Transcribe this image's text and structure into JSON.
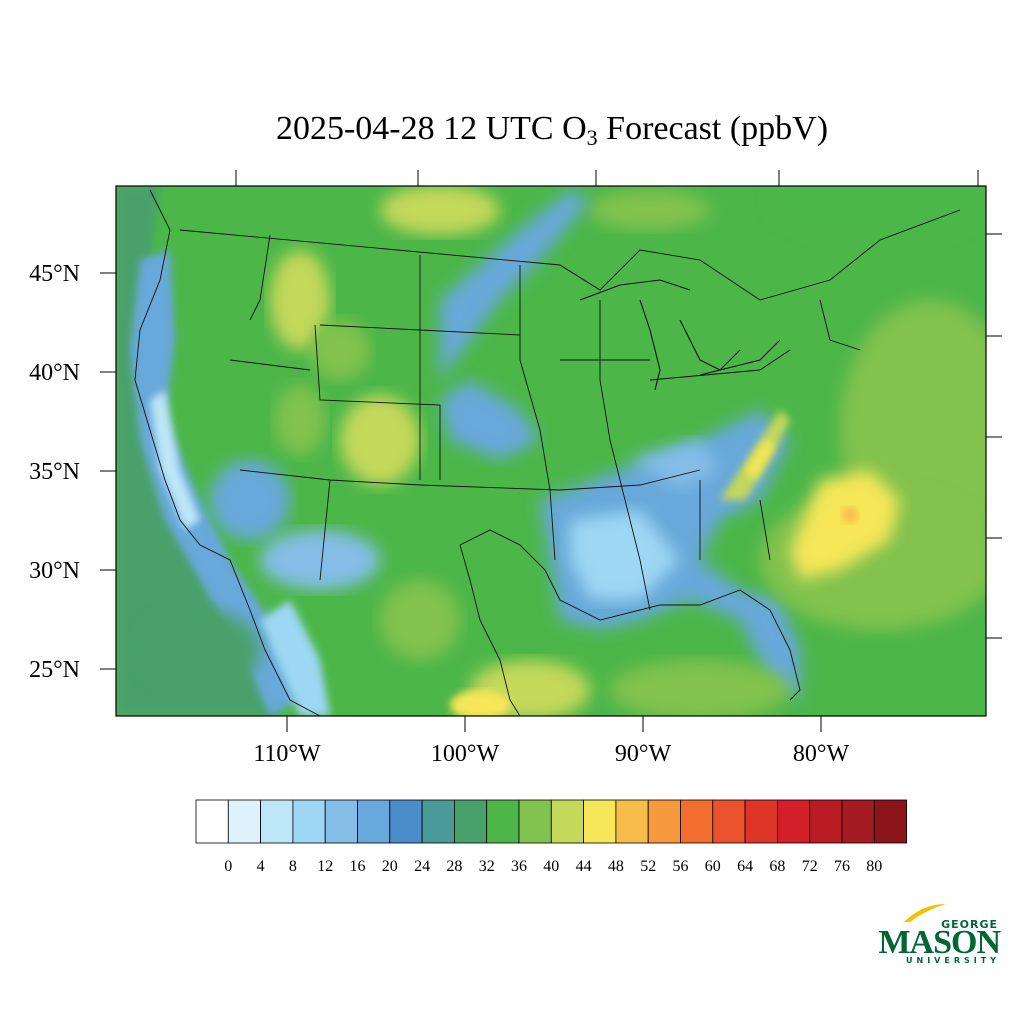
{
  "title": {
    "prefix": "2025-04-28 12 UTC O",
    "subscript": "3",
    "suffix": " Forecast (ppbV)"
  },
  "map": {
    "lat_labels": [
      "45°N",
      "40°N",
      "35°N",
      "30°N",
      "25°N"
    ],
    "lon_labels": [
      "110°W",
      "100°W",
      "90°W",
      "80°W"
    ]
  },
  "colorbar": {
    "labels": [
      "0",
      "4",
      "8",
      "12",
      "16",
      "20",
      "24",
      "28",
      "32",
      "36",
      "40",
      "44",
      "48",
      "52",
      "56",
      "60",
      "64",
      "68",
      "72",
      "76",
      "80"
    ],
    "colors": [
      "#ffffff",
      "#def2fb",
      "#bde6f8",
      "#9dd7f3",
      "#84bde6",
      "#68a8da",
      "#4b8ccb",
      "#4a9a9a",
      "#48a06a",
      "#4cb649",
      "#82c24e",
      "#c4d85a",
      "#f6e659",
      "#f7bd4a",
      "#f69a3d",
      "#f26d2e",
      "#e9522c",
      "#dd3528",
      "#d21f2a",
      "#b81c24",
      "#a31b20",
      "#8c151a"
    ]
  },
  "logo": {
    "line1": "GEORGE",
    "line2": "MASON",
    "line3": "UNIVERSITY",
    "color": "#006633",
    "accent": "#f2c100"
  }
}
